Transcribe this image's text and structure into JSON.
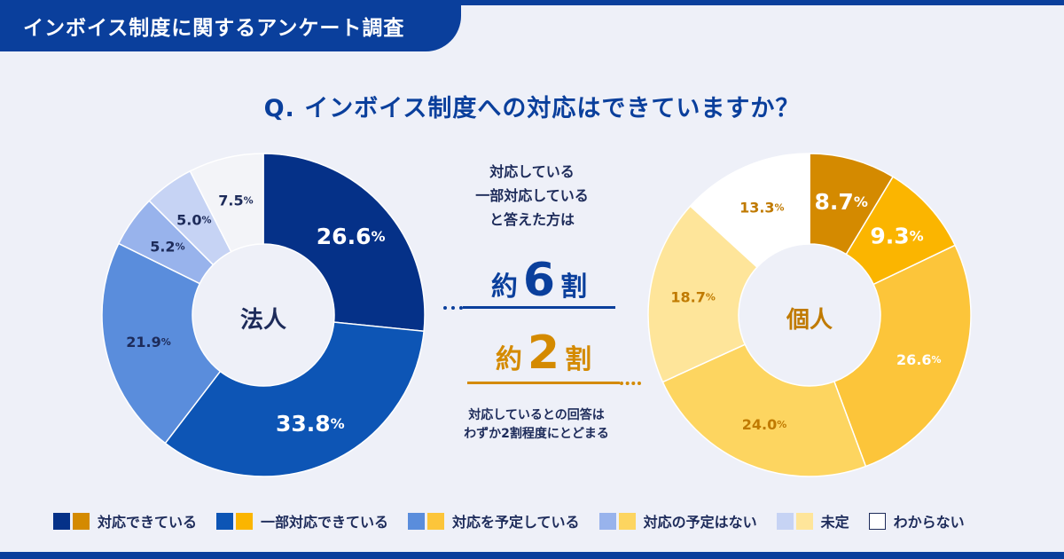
{
  "header": {
    "title": "インボイス制度に関するアンケート調査"
  },
  "question": "Q. インボイス制度への対応はできていますか？",
  "middle": {
    "intro_lines": [
      "対応している",
      "一部対応している",
      "と答えた方は"
    ],
    "corp_summary": {
      "prefix": "約",
      "number": "6",
      "suffix": "割"
    },
    "indiv_summary": {
      "prefix": "約",
      "number": "2",
      "suffix": "割"
    },
    "note_lines": [
      "対応しているとの回答は",
      "わずか2割程度にとどまる"
    ]
  },
  "colors": {
    "navy": "#0a3f9c",
    "orange": "#d48a00"
  },
  "chart_data": [
    {
      "type": "pie",
      "title": "法人",
      "unit": "%",
      "categories": [
        "対応できている",
        "一部対応できている",
        "対応を予定している",
        "対応の予定はない",
        "未定",
        "わからない"
      ],
      "values": [
        26.6,
        33.8,
        21.9,
        5.2,
        5.0,
        7.5
      ],
      "labels": [
        "26.6",
        "33.8",
        "21.9",
        "5.2",
        "5.0",
        "7.5"
      ],
      "colors": [
        "#053188",
        "#0d55b5",
        "#5a8ddc",
        "#98b3ec",
        "#c6d3f4",
        "#f3f4f8"
      ],
      "label_colors": [
        "#ffffff",
        "#ffffff",
        "#1d2b5a",
        "#1d2b5a",
        "#1d2b5a",
        "#1d2b5a"
      ]
    },
    {
      "type": "pie",
      "title": "個人",
      "unit": "%",
      "categories": [
        "対応できている",
        "一部対応できている",
        "対応を予定している",
        "対応の予定はない",
        "未定",
        "わからない"
      ],
      "values": [
        8.7,
        9.3,
        26.6,
        24.0,
        18.7,
        13.3
      ],
      "labels": [
        "8.7",
        "9.3",
        "26.6",
        "24.0",
        "18.7",
        "13.3"
      ],
      "colors": [
        "#d48a00",
        "#fbb500",
        "#fcc53a",
        "#fdd560",
        "#fee59a",
        "#ffffff"
      ],
      "label_colors": [
        "#ffffff",
        "#ffffff",
        "#ffffff",
        "#c07a00",
        "#c07a00",
        "#c07a00"
      ]
    }
  ],
  "legend": [
    {
      "label": "対応できている",
      "corp": "#053188",
      "indiv": "#d48a00"
    },
    {
      "label": "一部対応できている",
      "corp": "#0d55b5",
      "indiv": "#fbb500"
    },
    {
      "label": "対応を予定している",
      "corp": "#5a8ddc",
      "indiv": "#fcc53a"
    },
    {
      "label": "対応の予定はない",
      "corp": "#98b3ec",
      "indiv": "#fdd560"
    },
    {
      "label": "未定",
      "corp": "#c6d3f4",
      "indiv": "#fee59a"
    },
    {
      "label": "わからない",
      "outline": true
    }
  ]
}
